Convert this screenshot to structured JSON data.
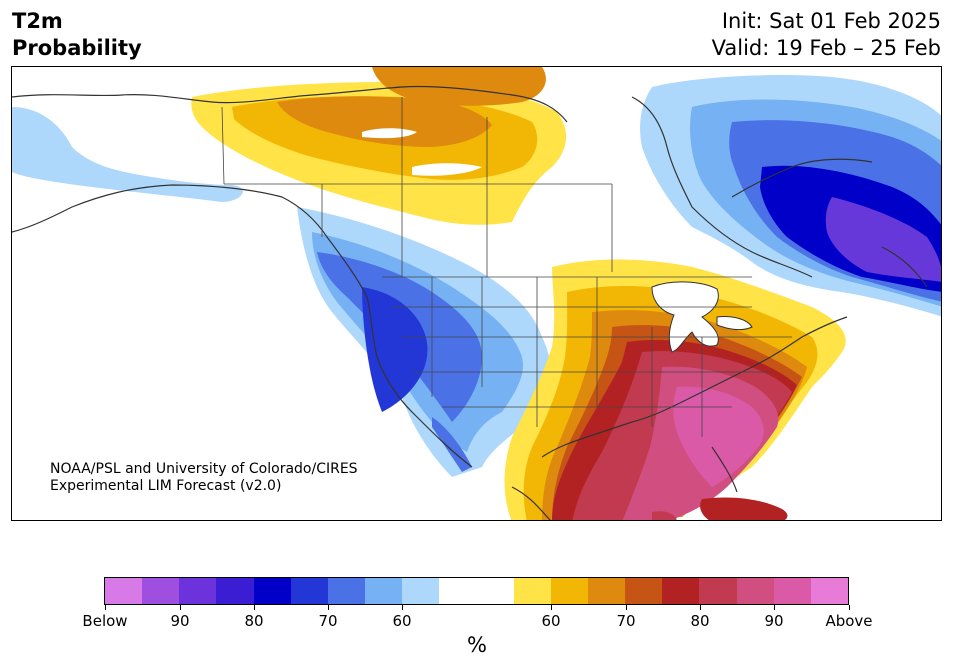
{
  "header": {
    "title_line1": "T2m",
    "title_line2": "Probability",
    "init": "Init: Sat 01 Feb 2025",
    "valid": "Valid: 19 Feb – 25 Feb"
  },
  "map": {
    "credit_line1": "NOAA/PSL and University of Colorado/CIRES",
    "credit_line2": "Experimental LIM Forecast (v2.0)",
    "below_colors": [
      "#aed8fb",
      "#76b1f3",
      "#4a72e6",
      "#2337d6",
      "#0000c9",
      "#3a1bd2",
      "#6638d9"
    ],
    "above_colors": [
      "#ffe347",
      "#f2b705",
      "#de8a0e",
      "#c55415",
      "#b32222",
      "#c23a50",
      "#d14f80",
      "#da5aa8"
    ]
  },
  "colorbar": {
    "unit": "%",
    "colors": [
      "#d77ae8",
      "#9e4fe0",
      "#6c32dc",
      "#3b1dd4",
      "#0000c9",
      "#2337d6",
      "#4a72e6",
      "#76b1f3",
      "#aed8fb",
      "#ffffff",
      "#ffe347",
      "#f2b705",
      "#de8a0e",
      "#c55415",
      "#b32222",
      "#c23a50",
      "#d14f80",
      "#da5aa8",
      "#e87ad8"
    ],
    "tick_labels": [
      "Below",
      "90",
      "80",
      "70",
      "60",
      "60",
      "70",
      "80",
      "90",
      "Above"
    ]
  }
}
